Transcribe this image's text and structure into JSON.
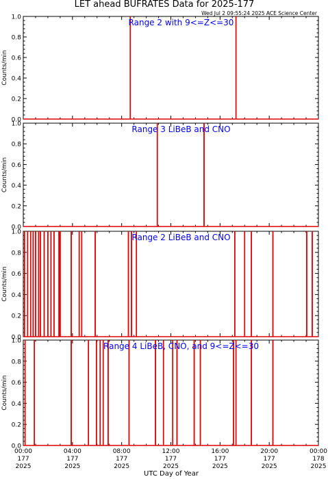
{
  "header": {
    "title": "LET ahead BUFRATES Data for 2025-177",
    "timestamp": "Wed Jul  2 09:55:24 2025 ACE Science Center"
  },
  "colors": {
    "series": "#e00000",
    "panel_title": "#0000ff",
    "axis": "#000000"
  },
  "x_axis": {
    "label": "UTC Day of Year",
    "ticks": [
      {
        "time": "00:00",
        "doy": "177",
        "year": "2025"
      },
      {
        "time": "04:00",
        "doy": "177",
        "year": "2025"
      },
      {
        "time": "08:00",
        "doy": "177",
        "year": "2025"
      },
      {
        "time": "12:00",
        "doy": "177",
        "year": "2025"
      },
      {
        "time": "16:00",
        "doy": "177",
        "year": "2025"
      },
      {
        "time": "20:00",
        "doy": "177",
        "year": "2025"
      },
      {
        "time": "00:00",
        "doy": "178",
        "year": "2025"
      }
    ]
  },
  "chart_data": [
    {
      "type": "line",
      "title": "Range 2 with 9<=Z<=30",
      "ylabel": "Counts/min",
      "xlim_hours": [
        0,
        24
      ],
      "ylim": [
        0,
        1.0
      ],
      "yticks": [
        "0.0",
        "0.2",
        "0.4",
        "0.6",
        "0.8",
        "1.0"
      ],
      "spikes_hours": [
        8.7,
        17.3
      ]
    },
    {
      "type": "line",
      "title": "Range 3 LiBeB and CNO",
      "ylabel": "Counts/min",
      "xlim_hours": [
        0,
        24
      ],
      "ylim": [
        0,
        1.0
      ],
      "yticks": [
        "0.0",
        "0.2",
        "0.4",
        "0.6",
        "0.8",
        "1.0"
      ],
      "spikes_hours": [
        10.9,
        14.7
      ]
    },
    {
      "type": "line",
      "title": "Range 2 LiBeB and CNO",
      "ylabel": "Counts/min",
      "xlim_hours": [
        0,
        24
      ],
      "ylim": [
        0,
        1.0
      ],
      "yticks": [
        "0.0",
        "0.2",
        "0.4",
        "0.6",
        "0.8",
        "1.0"
      ],
      "spikes_hours": [
        0.1,
        0.35,
        0.6,
        0.8,
        1.0,
        1.25,
        1.4,
        1.7,
        2.0,
        2.25,
        2.5,
        2.9,
        3.0,
        3.9,
        4.55,
        4.75,
        5.85,
        8.55,
        8.8,
        9.2,
        17.2,
        18.0,
        18.55,
        20.3,
        23.05,
        23.5
      ]
    },
    {
      "type": "line",
      "title": "Range 4 LiBeB, CNO, and 9<=Z<=30",
      "ylabel": "Counts/min",
      "xlim_hours": [
        0,
        24
      ],
      "ylim": [
        0,
        1.0
      ],
      "yticks": [
        "0.0",
        "0.2",
        "0.4",
        "0.6",
        "0.8",
        "1.0"
      ],
      "spikes_hours": [
        0.15,
        0.9,
        3.9,
        5.3,
        5.95,
        6.25,
        6.5,
        6.9,
        8.6,
        10.75,
        11.4,
        12.15,
        12.5,
        13.9,
        14.4,
        17.1,
        17.3,
        18.55,
        20.3
      ]
    }
  ]
}
